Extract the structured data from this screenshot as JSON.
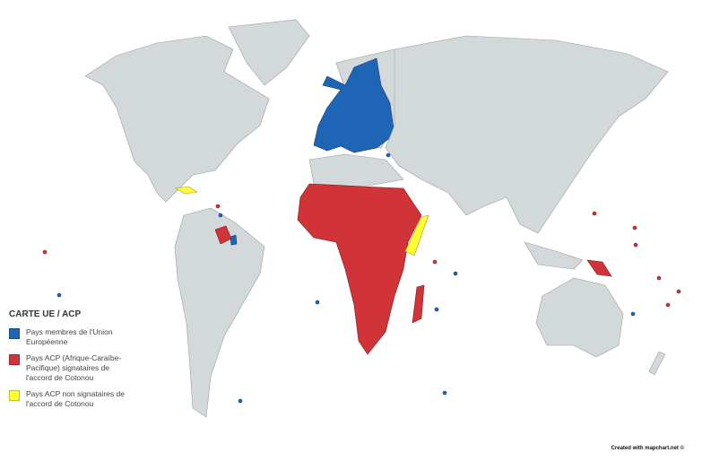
{
  "legend": {
    "title": "CARTE UE / ACP",
    "items": [
      {
        "label": "Pays membres de l'Union Européenne",
        "color": "#1f65b6"
      },
      {
        "label": "Pays ACP (Afrique-Caraïbe-Pacifique) signataires de l'accord de Cotonou",
        "color": "#d13438"
      },
      {
        "label": "Pays ACP non signataires de l'accord de Cotonou",
        "color": "#ffff33"
      }
    ]
  },
  "credit": "Created with mapchart.net ©",
  "colors": {
    "land": "#d3d8db",
    "background": "#ffffff"
  }
}
